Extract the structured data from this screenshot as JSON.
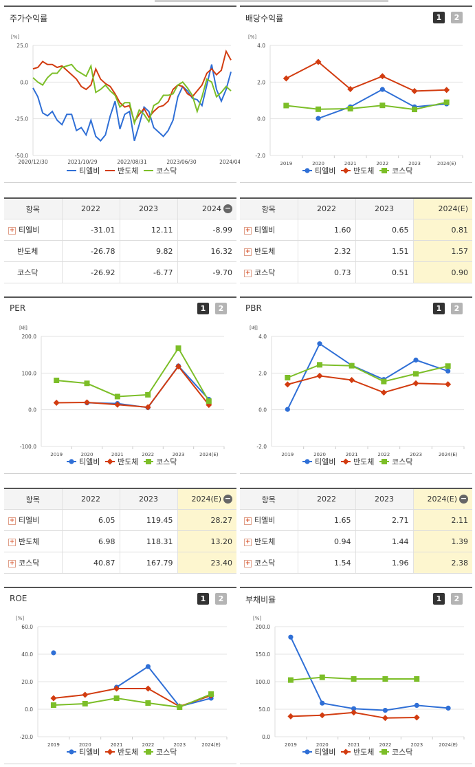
{
  "colors": {
    "tlb": "#2f6fd6",
    "semi": "#d23c10",
    "kosdaq": "#7cbe28"
  },
  "legend": [
    "티엘비",
    "반도체",
    "코스닥"
  ],
  "buttons": {
    "one": "1",
    "two": "2"
  },
  "panels": {
    "stock": {
      "title": "주가수익률",
      "chart_data": {
        "type": "line",
        "unit": "[%]",
        "ylim": [
          -50,
          25
        ],
        "yticks": [
          "25.0",
          "0.0",
          "-25.0",
          "-50.0"
        ],
        "xtick_labels": [
          "2020/12/30",
          "2021/10/29",
          "2022/08/31",
          "2023/06/30",
          "2024/04/"
        ],
        "series": [
          {
            "name": "티엘비",
            "values": [
              -4,
              -10,
              -21,
              -23,
              -20,
              -26,
              -29,
              -22,
              -22,
              -33,
              -31,
              -36,
              -26,
              -37,
              -40,
              -36,
              -23,
              -13,
              -32,
              -22,
              -20,
              -40,
              -29,
              -17,
              -20,
              -31,
              -34,
              -37,
              -33,
              -26,
              -10,
              -3,
              -6,
              -11,
              -12,
              -16,
              -2,
              12,
              -5,
              -13,
              -5,
              7
            ]
          },
          {
            "name": "반도체",
            "values": [
              9,
              10,
              14,
              12,
              12,
              10,
              11,
              8,
              5,
              2,
              -3,
              -5,
              -2,
              9,
              2,
              -1,
              -3,
              -8,
              -14,
              -17,
              -16,
              -27,
              -22,
              -18,
              -24,
              -20,
              -17,
              -16,
              -13,
              -5,
              -2,
              -3,
              -8,
              -10,
              -6,
              -2,
              6,
              9,
              5,
              8,
              21,
              15
            ]
          },
          {
            "name": "코스닥",
            "values": [
              3,
              0,
              -2,
              3,
              6,
              6,
              10,
              11,
              12,
              8,
              6,
              4,
              11,
              -7,
              -5,
              -2,
              -6,
              -9,
              -17,
              -14,
              -14,
              -28,
              -19,
              -22,
              -27,
              -16,
              -14,
              -9,
              -9,
              -8,
              -2,
              0,
              -4,
              -9,
              -20,
              -10,
              2,
              0,
              -10,
              -7,
              -3,
              -6
            ]
          }
        ]
      }
    },
    "dividend": {
      "title": "배당수익률",
      "chart_data": {
        "type": "line",
        "unit": "[%]",
        "ylim": [
          -2,
          4
        ],
        "yticks": [
          "4.0",
          "2.0",
          "0.0",
          "-2.0"
        ],
        "categories": [
          "2019",
          "2020",
          "2021",
          "2022",
          "2023",
          "2024(E)"
        ],
        "series": [
          {
            "name": "티엘비",
            "values": [
              null,
              0.02,
              0.65,
              1.6,
              0.65,
              0.81
            ]
          },
          {
            "name": "반도체",
            "values": [
              2.2,
              3.1,
              1.62,
              2.32,
              1.51,
              1.57
            ]
          },
          {
            "name": "코스닥",
            "values": [
              0.72,
              0.52,
              0.55,
              0.73,
              0.51,
              0.9
            ]
          }
        ]
      }
    },
    "per": {
      "title": "PER",
      "chart_data": {
        "type": "line",
        "unit": "[배]",
        "ylim": [
          -100,
          200
        ],
        "yticks": [
          "200.0",
          "100.0",
          "0.0",
          "-100.0"
        ],
        "categories": [
          "2019",
          "2020",
          "2021",
          "2022",
          "2023",
          "2024(E)"
        ],
        "series": [
          {
            "name": "티엘비",
            "values": [
              null,
              19,
              17,
              6.05,
              119.45,
              28.27
            ]
          },
          {
            "name": "반도체",
            "values": [
              19,
              20,
              14,
              6.98,
              118.31,
              13.2
            ]
          },
          {
            "name": "코스닥",
            "values": [
              80,
              72,
              36,
              40.87,
              167.79,
              23.4
            ]
          }
        ]
      }
    },
    "pbr": {
      "title": "PBR",
      "chart_data": {
        "type": "line",
        "unit": "[배]",
        "ylim": [
          -2,
          4
        ],
        "yticks": [
          "4.0",
          "2.0",
          "0.0",
          "-2.0"
        ],
        "categories": [
          "2019",
          "2020",
          "2021",
          "2022",
          "2023",
          "2024(E)"
        ],
        "series": [
          {
            "name": "티엘비",
            "values": [
              0.02,
              3.6,
              2.42,
              1.65,
              2.71,
              2.11
            ]
          },
          {
            "name": "반도체",
            "values": [
              1.38,
              1.85,
              1.62,
              0.94,
              1.44,
              1.39
            ]
          },
          {
            "name": "코스닥",
            "values": [
              1.75,
              2.45,
              2.4,
              1.54,
              1.96,
              2.38
            ]
          }
        ]
      }
    },
    "roe": {
      "title": "ROE",
      "chart_data": {
        "type": "line",
        "unit": "[%]",
        "ylim": [
          -20,
          60
        ],
        "yticks": [
          "60.0",
          "40.0",
          "20.0",
          "0.0",
          "-20.0"
        ],
        "categories": [
          "2019",
          "2020",
          "2021",
          "2022",
          "2023",
          "2024(E)"
        ],
        "series": [
          {
            "name": "티엘비",
            "values": [
              41,
              null,
              16,
              31,
              2,
              8
            ]
          },
          {
            "name": "반도체",
            "values": [
              8,
              10.5,
              15,
              15,
              2,
              10
            ]
          },
          {
            "name": "코스닥",
            "values": [
              3,
              4,
              8,
              4.5,
              1.5,
              11
            ]
          }
        ]
      }
    },
    "debt": {
      "title": "부채비율",
      "chart_data": {
        "type": "line",
        "unit": "[%]",
        "ylim": [
          0,
          200
        ],
        "yticks": [
          "200.0",
          "150.0",
          "100.0",
          "50.0",
          "0.0"
        ],
        "categories": [
          "2019",
          "2020",
          "2021",
          "2022",
          "2023",
          "2024(E)"
        ],
        "series": [
          {
            "name": "티엘비",
            "values": [
              181,
              61,
              51,
              48,
              57,
              52
            ]
          },
          {
            "name": "반도체",
            "values": [
              37,
              39,
              44,
              34,
              35,
              null
            ]
          },
          {
            "name": "코스닥",
            "values": [
              103,
              108,
              105,
              105,
              105,
              null
            ]
          }
        ]
      }
    }
  },
  "tables": {
    "stock": {
      "headers": [
        "항목",
        "2022",
        "2023",
        "2024"
      ],
      "rows": [
        {
          "name": "티엘비",
          "v": [
            "-31.01",
            "12.11",
            "-8.99"
          ]
        },
        {
          "name": "반도체",
          "v": [
            "-26.78",
            "9.82",
            "16.32"
          ]
        },
        {
          "name": "코스닥",
          "v": [
            "-26.92",
            "-6.77",
            "-9.70"
          ]
        }
      ]
    },
    "dividend": {
      "headers": [
        "항목",
        "2022",
        "2023",
        "2024(E)"
      ],
      "rows": [
        {
          "name": "티엘비",
          "v": [
            "1.60",
            "0.65",
            "0.81"
          ]
        },
        {
          "name": "반도체",
          "v": [
            "2.32",
            "1.51",
            "1.57"
          ]
        },
        {
          "name": "코스닥",
          "v": [
            "0.73",
            "0.51",
            "0.90"
          ]
        }
      ]
    },
    "per": {
      "headers": [
        "항목",
        "2022",
        "2023",
        "2024(E)"
      ],
      "rows": [
        {
          "name": "티엘비",
          "v": [
            "6.05",
            "119.45",
            "28.27"
          ]
        },
        {
          "name": "반도체",
          "v": [
            "6.98",
            "118.31",
            "13.20"
          ]
        },
        {
          "name": "코스닥",
          "v": [
            "40.87",
            "167.79",
            "23.40"
          ]
        }
      ]
    },
    "pbr": {
      "headers": [
        "항목",
        "2022",
        "2023",
        "2024(E)"
      ],
      "rows": [
        {
          "name": "티엘비",
          "v": [
            "1.65",
            "2.71",
            "2.11"
          ]
        },
        {
          "name": "반도체",
          "v": [
            "0.94",
            "1.44",
            "1.39"
          ]
        },
        {
          "name": "코스닥",
          "v": [
            "1.54",
            "1.96",
            "2.38"
          ]
        }
      ]
    }
  }
}
